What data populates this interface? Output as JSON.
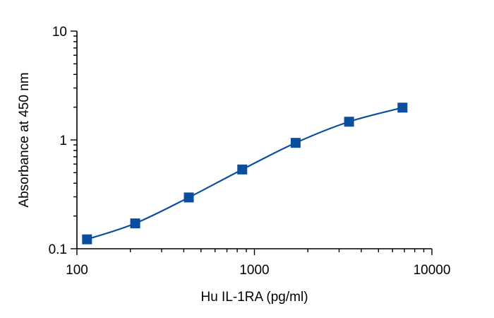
{
  "chart_data": {
    "type": "scatter",
    "title": "",
    "xlabel": "Hu IL-1RA (pg/ml)",
    "ylabel": "Absorbance at 450 nm",
    "x_scale": "log",
    "y_scale": "log",
    "xlim": [
      100,
      10000
    ],
    "ylim": [
      0.1,
      10
    ],
    "x_ticks": [
      "100",
      "1000",
      "10000"
    ],
    "y_ticks": [
      "0.1",
      "1",
      "10"
    ],
    "grid": false,
    "legend": "none",
    "colors": {
      "marker": "#0a4f9e",
      "curve": "#0a4f9e",
      "axis": "#000000"
    },
    "series": [
      {
        "marker": "square",
        "fitted_curve": true,
        "points": [
          {
            "x": 114,
            "y": 0.122
          },
          {
            "x": 213,
            "y": 0.171
          },
          {
            "x": 427,
            "y": 0.296
          },
          {
            "x": 854,
            "y": 0.535
          },
          {
            "x": 1707,
            "y": 0.94
          },
          {
            "x": 3414,
            "y": 1.47
          },
          {
            "x": 6828,
            "y": 1.98
          }
        ]
      }
    ]
  }
}
